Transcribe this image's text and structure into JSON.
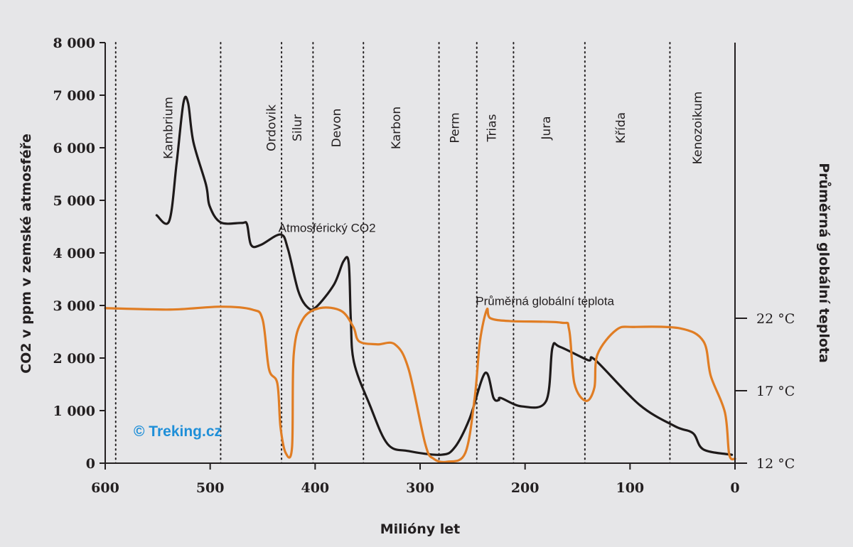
{
  "chart_data": {
    "type": "line",
    "xlabel": "Milióny let",
    "ylabel": "CO2 v ppm v zemské atmosféře",
    "y2label": "Průměrná globální teplota",
    "xlim": [
      600,
      0
    ],
    "ylim": [
      0,
      8000
    ],
    "y2lim": [
      12,
      22
    ],
    "x_ticks": [
      {
        "value": 600,
        "label": "600"
      },
      {
        "value": 500,
        "label": "500"
      },
      {
        "value": 400,
        "label": "400"
      },
      {
        "value": 300,
        "label": "300"
      },
      {
        "value": 200,
        "label": "200"
      },
      {
        "value": 100,
        "label": "100"
      },
      {
        "value": 0,
        "label": "0"
      }
    ],
    "y_ticks": [
      {
        "value": 0,
        "label": "0"
      },
      {
        "value": 1000,
        "label": "1 000"
      },
      {
        "value": 2000,
        "label": "2 000"
      },
      {
        "value": 3000,
        "label": "3 000"
      },
      {
        "value": 4000,
        "label": "4 000"
      },
      {
        "value": 5000,
        "label": "5 000"
      },
      {
        "value": 6000,
        "label": "6 000"
      },
      {
        "value": 7000,
        "label": "7 000"
      },
      {
        "value": 8000,
        "label": "8 000"
      }
    ],
    "y2_ticks": [
      {
        "value": 22,
        "label": "22 °C"
      },
      {
        "value": 17,
        "label": "17 °C"
      },
      {
        "value": 12,
        "label": "12 °C"
      }
    ],
    "period_boundaries": [
      590,
      490,
      432,
      402,
      354,
      282,
      246,
      211,
      143,
      62
    ],
    "periods": [
      {
        "name": "Kambrium",
        "age": 540
      },
      {
        "name": "Ordovik",
        "age": 442
      },
      {
        "name": "Silur",
        "age": 417
      },
      {
        "name": "Devon",
        "age": 380
      },
      {
        "name": "Karbon",
        "age": 323
      },
      {
        "name": "Perm",
        "age": 267
      },
      {
        "name": "Trias",
        "age": 232
      },
      {
        "name": "Jura",
        "age": 180
      },
      {
        "name": "Křída",
        "age": 109
      },
      {
        "name": "Kenozoikum",
        "age": 36
      }
    ],
    "series": [
      {
        "name": "Atmosférický CO2",
        "axis": "left",
        "color": "#1e1a1a",
        "label_age": 435,
        "label_value": 4400,
        "points": [
          [
            551,
            4716
          ],
          [
            539,
            4608
          ],
          [
            532,
            5700
          ],
          [
            525.5,
            6850
          ],
          [
            521,
            6850
          ],
          [
            516,
            6110
          ],
          [
            504,
            5300
          ],
          [
            500.5,
            4890
          ],
          [
            490,
            4580
          ],
          [
            470,
            4570
          ],
          [
            465,
            4550
          ],
          [
            461,
            4150
          ],
          [
            452,
            4150
          ],
          [
            433,
            4350
          ],
          [
            426,
            4080
          ],
          [
            416,
            3270
          ],
          [
            407,
            2960
          ],
          [
            399,
            2970
          ],
          [
            382,
            3400
          ],
          [
            373,
            3840
          ],
          [
            368,
            3810
          ],
          [
            366,
            2730
          ],
          [
            363,
            1920
          ],
          [
            348,
            1110
          ],
          [
            331,
            365
          ],
          [
            311,
            230
          ],
          [
            280,
            160
          ],
          [
            267,
            300
          ],
          [
            253,
            840
          ],
          [
            238,
            1716
          ],
          [
            230,
            1240
          ],
          [
            225,
            1200
          ],
          [
            223,
            1240
          ],
          [
            203,
            1080
          ],
          [
            180,
            1180
          ],
          [
            174,
            2190
          ],
          [
            167,
            2215
          ],
          [
            140,
            1960
          ],
          [
            133,
            1960
          ],
          [
            91,
            1110
          ],
          [
            57,
            700
          ],
          [
            40,
            570
          ],
          [
            30,
            260
          ],
          [
            3,
            160
          ]
        ]
      },
      {
        "name": "Průměrná globální teplota",
        "axis": "right",
        "color": "#e07d24",
        "label_age": 247,
        "label_value": 22.9,
        "points": [
          [
            600,
            22.7
          ],
          [
            538,
            22.6
          ],
          [
            490,
            22.8
          ],
          [
            460,
            22.6
          ],
          [
            450,
            21.9
          ],
          [
            444,
            18.5
          ],
          [
            436,
            17.5
          ],
          [
            433,
            14.5
          ],
          [
            428,
            12.7
          ],
          [
            422,
            13.1
          ],
          [
            420.4,
            19.5
          ],
          [
            412,
            21.9
          ],
          [
            395.5,
            22.7
          ],
          [
            375,
            22.5
          ],
          [
            363.6,
            21.4
          ],
          [
            358,
            20.4
          ],
          [
            341,
            20.2
          ],
          [
            324,
            20.2
          ],
          [
            311,
            18.5
          ],
          [
            295,
            13.3
          ],
          [
            287,
            12.3
          ],
          [
            274,
            12.1
          ],
          [
            257,
            12.7
          ],
          [
            248,
            16.5
          ],
          [
            243,
            20.4
          ],
          [
            236.4,
            22.6
          ],
          [
            233,
            22
          ],
          [
            213,
            21.8
          ],
          [
            166,
            21.7
          ],
          [
            158,
            21.2
          ],
          [
            153,
            17.5
          ],
          [
            142,
            16.3
          ],
          [
            134,
            17.2
          ],
          [
            131,
            19.5
          ],
          [
            113,
            21.2
          ],
          [
            96,
            21.4
          ],
          [
            52,
            21.3
          ],
          [
            30,
            20.4
          ],
          [
            23,
            18
          ],
          [
            9.6,
            15.5
          ],
          [
            5.5,
            12.6
          ],
          [
            0,
            12.3
          ]
        ]
      }
    ]
  },
  "watermark": {
    "text": "© Treking.cz",
    "color": "#1f8fd8"
  }
}
